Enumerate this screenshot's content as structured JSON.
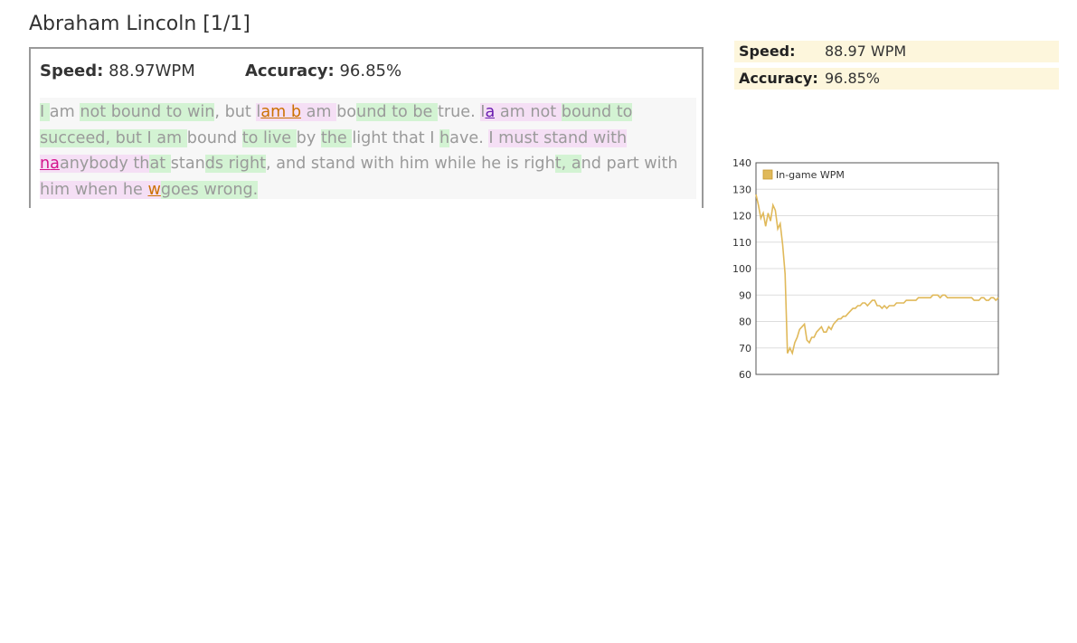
{
  "page": {
    "title": "Abraham Lincoln [1/1]"
  },
  "stats": {
    "speed_label": "Speed:",
    "speed_value": "88.97WPM",
    "accuracy_label": "Accuracy:",
    "accuracy_value": "96.85%"
  },
  "summary": {
    "speed_label": "Speed:",
    "speed_value": "88.97 WPM",
    "accuracy_label": "Accuracy:",
    "accuracy_value": "96.85%"
  },
  "passage": {
    "text": "I am not bound to win, but I am bound to be true. I am not bound to succeed, but I am bound to live by the light that I have. I must stand with anybody that stands right, and stand with him while he is right, and part with him when he goes wrong.",
    "typo_color": "#cc7000",
    "correction_color": "#6a1db0",
    "extra_color": "#d4148c",
    "fast_highlight": "#d3f3d3",
    "slow_highlight": "#f5dff5",
    "lines": [
      [
        {
          "t": "I ",
          "c": "g"
        },
        {
          "t": "am ",
          "c": ""
        },
        {
          "t": "not ",
          "c": "g"
        },
        {
          "t": "bound ",
          "c": "g"
        },
        {
          "t": "to ",
          "c": "g"
        },
        {
          "t": "win",
          "c": "g"
        },
        {
          "t": ", but ",
          "c": ""
        },
        {
          "t": "l",
          "c": "p"
        },
        {
          "t": "am b",
          "c": "p o"
        },
        {
          "t": " am ",
          "c": "p"
        },
        {
          "t": "bo",
          "c": ""
        },
        {
          "t": "und ",
          "c": "g"
        },
        {
          "t": "to ",
          "c": "g"
        },
        {
          "t": "be ",
          "c": "g"
        },
        {
          "t": "true. ",
          "c": ""
        },
        {
          "t": "I",
          "c": "p"
        },
        {
          "t": "a",
          "c": "p v"
        },
        {
          "t": " am not ",
          "c": "p"
        },
        {
          "t": "bo",
          "c": "g"
        },
        {
          "t": "und to",
          "c": "g"
        }
      ],
      [
        {
          "t": "succeed, but ",
          "c": "g"
        },
        {
          "t": "I am ",
          "c": "g"
        },
        {
          "t": "bound ",
          "c": ""
        },
        {
          "t": "to ",
          "c": "g"
        },
        {
          "t": "live ",
          "c": "g"
        },
        {
          "t": "by ",
          "c": ""
        },
        {
          "t": "the ",
          "c": "g"
        },
        {
          "t": "light that I ",
          "c": ""
        },
        {
          "t": "h",
          "c": "g"
        },
        {
          "t": "ave. ",
          "c": ""
        },
        {
          "t": "I must ",
          "c": "p"
        },
        {
          "t": "stand with",
          "c": "p"
        }
      ],
      [
        {
          "t": "n",
          "c": "p m"
        },
        {
          "t": "a",
          "c": "p m"
        },
        {
          "t": "anybody ",
          "c": "p"
        },
        {
          "t": "th",
          "c": "p"
        },
        {
          "t": "at ",
          "c": "g"
        },
        {
          "t": "stan",
          "c": ""
        },
        {
          "t": "ds right",
          "c": "g"
        },
        {
          "t": ", and stand with him while he is righ",
          "c": ""
        },
        {
          "t": "t, a",
          "c": "g"
        },
        {
          "t": "nd part with",
          "c": ""
        }
      ],
      [
        {
          "t": "him when he ",
          "c": "p"
        },
        {
          "t": "w",
          "c": "p o"
        },
        {
          "t": "goes wrong.",
          "c": "g"
        }
      ]
    ]
  },
  "chart_data": {
    "type": "line",
    "title": "",
    "xlabel": "",
    "ylabel": "",
    "ylim": [
      60,
      140
    ],
    "yticks": [
      60,
      70,
      80,
      90,
      100,
      110,
      120,
      130,
      140
    ],
    "grid": true,
    "legend_position": "top-left",
    "series": [
      {
        "name": "In-game WPM",
        "color": "#e0b95a",
        "x": [
          0,
          1,
          2,
          3,
          4,
          5,
          6,
          7,
          8,
          9,
          10,
          11,
          12,
          13,
          14,
          15,
          16,
          17,
          18,
          19,
          20,
          21,
          22,
          23,
          24,
          25,
          26,
          27,
          28,
          29,
          30,
          31,
          32,
          33,
          34,
          35,
          36,
          37,
          38,
          39,
          40,
          41,
          42,
          43,
          44,
          45,
          46,
          47,
          48,
          49,
          50,
          51,
          52,
          53,
          54,
          55,
          56,
          57,
          58,
          59,
          60,
          61,
          62,
          63,
          64,
          65,
          66,
          67,
          68,
          69,
          70,
          71,
          72,
          73,
          74,
          75,
          76,
          77,
          78,
          79,
          80,
          81,
          82,
          83,
          84,
          85,
          86,
          87,
          88,
          89,
          90,
          91,
          92,
          93,
          94,
          95,
          96,
          97,
          98,
          99,
          100
        ],
        "values": [
          128,
          124,
          119,
          121,
          116,
          121,
          118,
          124,
          122,
          115,
          117,
          109,
          98,
          68,
          70,
          68,
          72,
          74,
          77,
          78,
          79,
          73,
          72,
          74,
          74,
          76,
          77,
          78,
          76,
          76,
          78,
          77,
          79,
          80,
          81,
          81,
          82,
          82,
          83,
          84,
          85,
          85,
          86,
          86,
          87,
          87,
          86,
          87,
          88,
          88,
          86,
          86,
          85,
          86,
          85,
          86,
          86,
          86,
          87,
          87,
          87,
          87,
          88,
          88,
          88,
          88,
          88,
          89,
          89,
          89,
          89,
          89,
          89,
          90,
          90,
          90,
          89,
          90,
          90,
          89,
          89,
          89,
          89,
          89,
          89,
          89,
          89,
          89,
          89,
          89,
          88,
          88,
          88,
          89,
          89,
          88,
          88,
          89,
          89,
          88,
          89
        ]
      }
    ]
  }
}
